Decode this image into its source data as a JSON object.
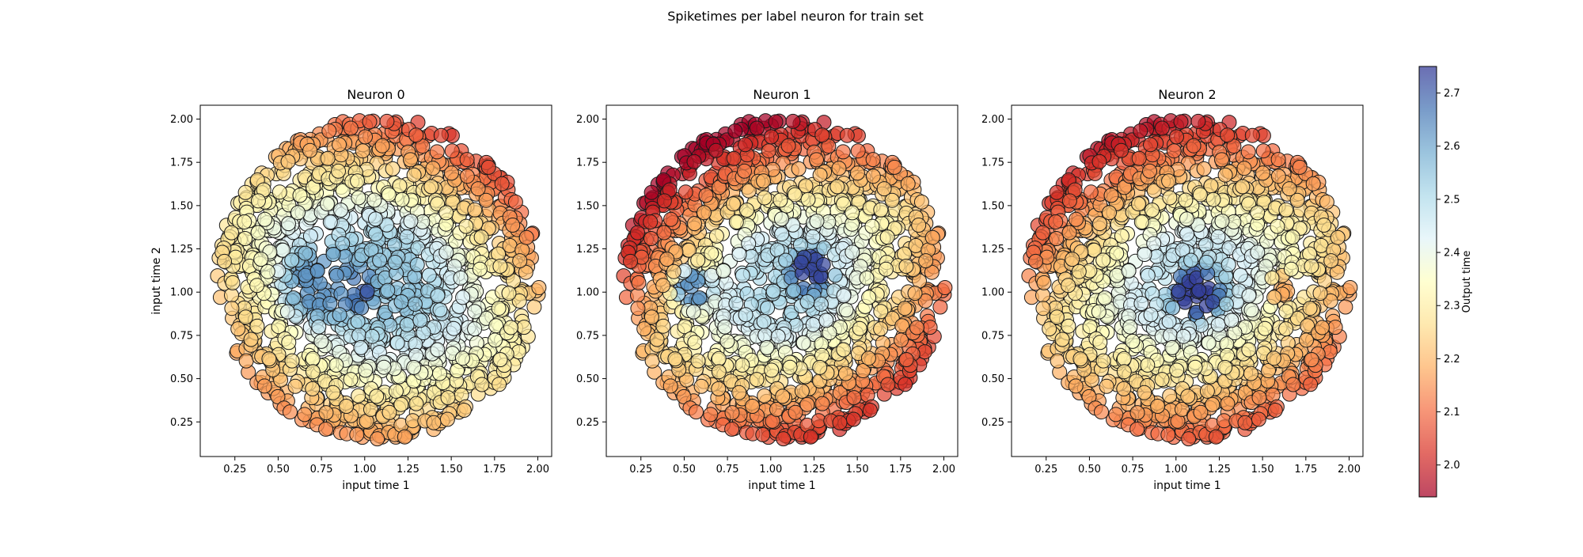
{
  "chart_data": {
    "type": "scatter",
    "title": "Spiketimes per label neuron for train set",
    "xlabel": "input time 1",
    "ylabel": "input time 2",
    "xlim": [
      0.05,
      2.08
    ],
    "ylim": [
      0.05,
      2.08
    ],
    "xticks": [
      0.25,
      0.5,
      0.75,
      1.0,
      1.25,
      1.5,
      1.75,
      2.0
    ],
    "yticks": [
      0.25,
      0.5,
      0.75,
      1.0,
      1.25,
      1.5,
      1.75,
      2.0
    ],
    "xtick_labels": [
      "0.25",
      "0.50",
      "0.75",
      "1.00",
      "1.25",
      "1.50",
      "1.75",
      "2.00"
    ],
    "ytick_labels": [
      "0.25",
      "0.50",
      "0.75",
      "1.00",
      "1.25",
      "1.50",
      "1.75",
      "2.00"
    ],
    "data_region": {
      "shape": "disk",
      "center": [
        1.08,
        1.08
      ],
      "radius": 0.93
    },
    "panels": [
      {
        "title": "Neuron 0",
        "field": {
          "base": 2.55,
          "gradient": 0.55,
          "direction": [
            -0.45,
            -0.89
          ],
          "blobs": [
            {
              "x": 0.92,
              "y": 1.02,
              "value": 2.73,
              "radius": 0.17
            },
            {
              "x": 0.75,
              "y": 1.05,
              "value": 2.62,
              "radius": 0.28
            }
          ]
        }
      },
      {
        "title": "Neuron 1",
        "field": {
          "base": 2.5,
          "gradient": 0.65,
          "direction": [
            0.5,
            -0.87
          ],
          "blobs": [
            {
              "x": 1.23,
              "y": 1.12,
              "value": 2.73,
              "radius": 0.17
            },
            {
              "x": 0.55,
              "y": 1.02,
              "value": 2.62,
              "radius": 0.15
            }
          ]
        }
      },
      {
        "title": "Neuron 2",
        "field": {
          "base": 2.48,
          "gradient": 0.55,
          "direction": [
            0.35,
            -0.94
          ],
          "blobs": [
            {
              "x": 1.12,
              "y": 1.0,
              "value": 2.74,
              "radius": 0.2
            },
            {
              "x": 1.62,
              "y": 1.02,
              "value": 2.18,
              "radius": 0.12
            }
          ]
        }
      }
    ],
    "colorbar": {
      "label": "Output time",
      "min": 1.94,
      "max": 2.75,
      "ticks": [
        2.0,
        2.1,
        2.2,
        2.3,
        2.4,
        2.5,
        2.6,
        2.7
      ],
      "tick_labels": [
        "2.0",
        "2.1",
        "2.2",
        "2.3",
        "2.4",
        "2.5",
        "2.6",
        "2.7"
      ],
      "colormap": "RdYlBu",
      "colors": [
        "#a50026",
        "#d73027",
        "#f46d43",
        "#fdae61",
        "#fee090",
        "#ffffbf",
        "#e0f3f8",
        "#abd9e9",
        "#74add1",
        "#4575b4",
        "#313695"
      ]
    },
    "grid": false
  }
}
